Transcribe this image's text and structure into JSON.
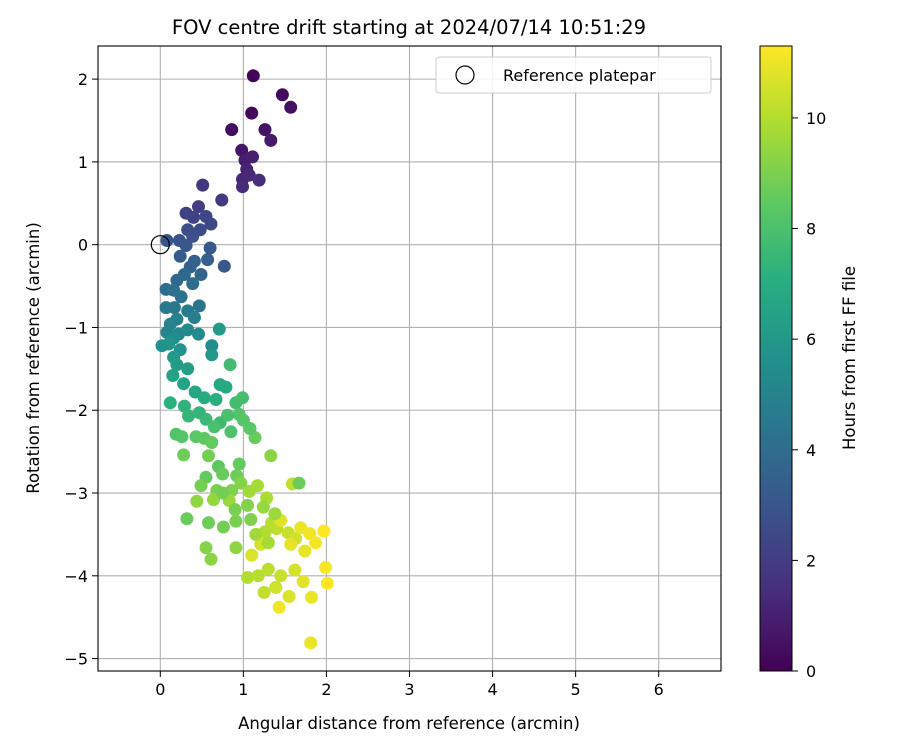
{
  "chart_data": {
    "type": "scatter",
    "title": "FOV centre drift starting at 2024/07/14 10:51:29",
    "xlabel": "Angular distance from reference (arcmin)",
    "ylabel": "Rotation from reference (arcmin)",
    "xlim": [
      -0.75,
      6.75
    ],
    "ylim": [
      -5.15,
      2.4
    ],
    "xticks": [
      "0",
      "1",
      "2",
      "3",
      "4",
      "5",
      "6"
    ],
    "xtick_values": [
      0,
      1,
      2,
      3,
      4,
      5,
      6
    ],
    "yticks": [
      "−5",
      "−4",
      "−3",
      "−2",
      "−1",
      "0",
      "1",
      "2"
    ],
    "ytick_values": [
      -5,
      -4,
      -3,
      -2,
      -1,
      0,
      1,
      2
    ],
    "grid": true,
    "legend": {
      "placement": "top-right",
      "entries": [
        "Reference platepar"
      ]
    },
    "reference_point": {
      "x": 0,
      "y": 0,
      "name": "Reference platepar"
    },
    "colorbar": {
      "label": "Hours from first FF file",
      "range": [
        0,
        11.3
      ],
      "ticks": [
        "0",
        "2",
        "4",
        "6",
        "8",
        "10"
      ],
      "tick_values": [
        0,
        2,
        4,
        6,
        8,
        10
      ],
      "colormap": "viridis"
    },
    "series": [
      {
        "points": [
          [
            1.12,
            2.04,
            0.1
          ],
          [
            1.47,
            1.81,
            0.3
          ],
          [
            1.57,
            1.66,
            0.5
          ],
          [
            1.1,
            1.59,
            0.2
          ],
          [
            0.86,
            1.39,
            0.4
          ],
          [
            1.26,
            1.39,
            0.6
          ],
          [
            1.33,
            1.26,
            0.8
          ],
          [
            0.98,
            1.14,
            0.7
          ],
          [
            1.02,
            1.02,
            0.9
          ],
          [
            1.11,
            1.06,
            1.0
          ],
          [
            1.04,
            0.91,
            1.1
          ],
          [
            0.99,
            0.79,
            1.2
          ],
          [
            1.07,
            0.84,
            1.3
          ],
          [
            0.99,
            0.7,
            1.4
          ],
          [
            1.19,
            0.78,
            1.5
          ],
          [
            0.51,
            0.72,
            1.8
          ],
          [
            0.74,
            0.54,
            2.0
          ],
          [
            0.46,
            0.46,
            2.1
          ],
          [
            0.31,
            0.38,
            2.2
          ],
          [
            0.4,
            0.33,
            2.3
          ],
          [
            0.55,
            0.34,
            2.4
          ],
          [
            0.61,
            0.25,
            2.5
          ],
          [
            0.48,
            0.18,
            2.6
          ],
          [
            0.33,
            0.18,
            2.7
          ],
          [
            0.39,
            0.1,
            2.8
          ],
          [
            0.23,
            0.05,
            2.9
          ],
          [
            0.08,
            0.05,
            3.0
          ],
          [
            0.31,
            -0.01,
            3.1
          ],
          [
            0.6,
            -0.04,
            3.2
          ],
          [
            0.24,
            -0.14,
            3.3
          ],
          [
            0.57,
            -0.18,
            3.4
          ],
          [
            0.41,
            -0.2,
            3.5
          ],
          [
            0.77,
            -0.26,
            3.2
          ],
          [
            0.36,
            -0.27,
            3.6
          ],
          [
            0.49,
            -0.36,
            3.7
          ],
          [
            0.2,
            -0.43,
            3.8
          ],
          [
            0.29,
            -0.36,
            3.9
          ],
          [
            0.39,
            -0.47,
            4.0
          ],
          [
            0.07,
            -0.54,
            4.1
          ],
          [
            0.16,
            -0.55,
            4.2
          ],
          [
            0.25,
            -0.63,
            4.3
          ],
          [
            0.47,
            -0.74,
            4.4
          ],
          [
            0.17,
            -0.76,
            4.5
          ],
          [
            0.07,
            -0.76,
            4.6
          ],
          [
            0.33,
            -0.8,
            4.7
          ],
          [
            0.41,
            -0.88,
            4.8
          ],
          [
            0.2,
            -0.9,
            4.9
          ],
          [
            0.12,
            -0.96,
            5.0
          ],
          [
            0.08,
            -1.06,
            5.1
          ],
          [
            0.22,
            -1.08,
            5.2
          ],
          [
            0.33,
            -1.03,
            5.3
          ],
          [
            0.46,
            -1.08,
            5.4
          ],
          [
            0.16,
            -1.13,
            5.5
          ],
          [
            0.62,
            -1.22,
            5.6
          ],
          [
            0.02,
            -1.22,
            5.7
          ],
          [
            0.24,
            -1.27,
            5.8
          ],
          [
            0.1,
            -1.2,
            5.9
          ],
          [
            0.62,
            -1.33,
            6.0
          ],
          [
            0.16,
            -1.36,
            6.1
          ],
          [
            0.71,
            -1.02,
            6.2
          ],
          [
            0.2,
            -1.45,
            6.3
          ],
          [
            0.33,
            -1.5,
            6.4
          ],
          [
            0.15,
            -1.58,
            6.5
          ],
          [
            0.28,
            -1.68,
            6.6
          ],
          [
            0.42,
            -1.78,
            6.7
          ],
          [
            0.72,
            -1.69,
            6.8
          ],
          [
            0.79,
            -1.72,
            6.9
          ],
          [
            0.53,
            -1.85,
            7.0
          ],
          [
            0.67,
            -1.87,
            7.1
          ],
          [
            0.12,
            -1.91,
            7.2
          ],
          [
            0.29,
            -1.95,
            7.3
          ],
          [
            0.47,
            -2.03,
            7.4
          ],
          [
            0.34,
            -2.07,
            7.5
          ],
          [
            0.55,
            -2.11,
            7.6
          ],
          [
            0.72,
            -2.15,
            7.7
          ],
          [
            0.91,
            -1.91,
            7.8
          ],
          [
            0.99,
            -1.85,
            7.9
          ],
          [
            0.65,
            -2.2,
            8.0
          ],
          [
            0.85,
            -2.26,
            8.1
          ],
          [
            0.19,
            -2.29,
            8.2
          ],
          [
            0.26,
            -2.32,
            8.3
          ],
          [
            0.43,
            -2.32,
            8.4
          ],
          [
            0.53,
            -2.34,
            8.5
          ],
          [
            0.62,
            -2.39,
            8.6
          ],
          [
            1.14,
            -2.33,
            8.7
          ],
          [
            0.28,
            -2.54,
            8.8
          ],
          [
            0.58,
            -2.55,
            8.9
          ],
          [
            0.84,
            -1.45,
            7.8
          ],
          [
            0.95,
            -2.05,
            8.2
          ],
          [
            1.08,
            -2.22,
            8.4
          ],
          [
            1.0,
            -2.12,
            8.3
          ],
          [
            0.81,
            -2.06,
            8.0
          ],
          [
            0.7,
            -2.68,
            8.5
          ],
          [
            0.55,
            -2.81,
            8.6
          ],
          [
            0.75,
            -2.77,
            8.7
          ],
          [
            0.92,
            -2.79,
            8.8
          ],
          [
            0.49,
            -2.91,
            8.9
          ],
          [
            0.68,
            -2.97,
            9.0
          ],
          [
            0.86,
            -2.97,
            9.1
          ],
          [
            0.97,
            -2.88,
            9.2
          ],
          [
            1.33,
            -2.55,
            9.3
          ],
          [
            0.44,
            -3.1,
            9.4
          ],
          [
            0.64,
            -3.08,
            9.5
          ],
          [
            0.83,
            -3.09,
            9.6
          ],
          [
            1.07,
            -2.98,
            9.7
          ],
          [
            1.17,
            -2.91,
            9.8
          ],
          [
            1.28,
            -3.06,
            9.9
          ],
          [
            0.32,
            -3.31,
            8.7
          ],
          [
            0.58,
            -3.36,
            8.8
          ],
          [
            0.76,
            -3.41,
            8.9
          ],
          [
            0.91,
            -3.34,
            9.0
          ],
          [
            1.09,
            -3.32,
            9.1
          ],
          [
            0.55,
            -3.66,
            9.2
          ],
          [
            0.61,
            -3.8,
            9.3
          ],
          [
            0.91,
            -3.66,
            9.4
          ],
          [
            1.26,
            -3.47,
            10.0
          ],
          [
            1.34,
            -3.36,
            10.1
          ],
          [
            1.4,
            -3.43,
            10.2
          ],
          [
            1.59,
            -2.89,
            10.3
          ],
          [
            1.67,
            -2.88,
            8.8
          ],
          [
            1.54,
            -3.48,
            10.4
          ],
          [
            1.63,
            -3.55,
            10.5
          ],
          [
            1.21,
            -3.62,
            10.6
          ],
          [
            1.1,
            -3.75,
            10.7
          ],
          [
            1.45,
            -3.33,
            10.8
          ],
          [
            1.57,
            -3.62,
            10.9
          ],
          [
            1.69,
            -3.42,
            11.0
          ],
          [
            1.8,
            -3.49,
            11.1
          ],
          [
            1.87,
            -3.6,
            11.2
          ],
          [
            1.97,
            -3.46,
            11.3
          ],
          [
            1.05,
            -4.02,
            10.0
          ],
          [
            1.18,
            -4.0,
            10.1
          ],
          [
            1.3,
            -3.92,
            10.2
          ],
          [
            1.45,
            -4.0,
            10.4
          ],
          [
            1.62,
            -3.93,
            10.6
          ],
          [
            1.72,
            -4.07,
            10.8
          ],
          [
            1.82,
            -4.26,
            11.0
          ],
          [
            1.25,
            -4.2,
            10.3
          ],
          [
            1.39,
            -4.14,
            10.5
          ],
          [
            1.55,
            -4.25,
            10.7
          ],
          [
            1.43,
            -4.38,
            11.1
          ],
          [
            1.99,
            -3.9,
            11.2
          ],
          [
            2.01,
            -4.09,
            11.3
          ],
          [
            1.81,
            -4.81,
            11.0
          ],
          [
            1.74,
            -3.7,
            10.9
          ],
          [
            1.24,
            -3.17,
            9.5
          ],
          [
            1.38,
            -3.25,
            9.6
          ],
          [
            1.3,
            -3.6,
            9.8
          ],
          [
            0.9,
            -3.2,
            9.0
          ],
          [
            1.15,
            -3.5,
            9.7
          ],
          [
            0.95,
            -2.65,
            8.6
          ],
          [
            0.75,
            -3.0,
            8.9
          ],
          [
            1.05,
            -3.15,
            9.2
          ]
        ]
      }
    ]
  }
}
